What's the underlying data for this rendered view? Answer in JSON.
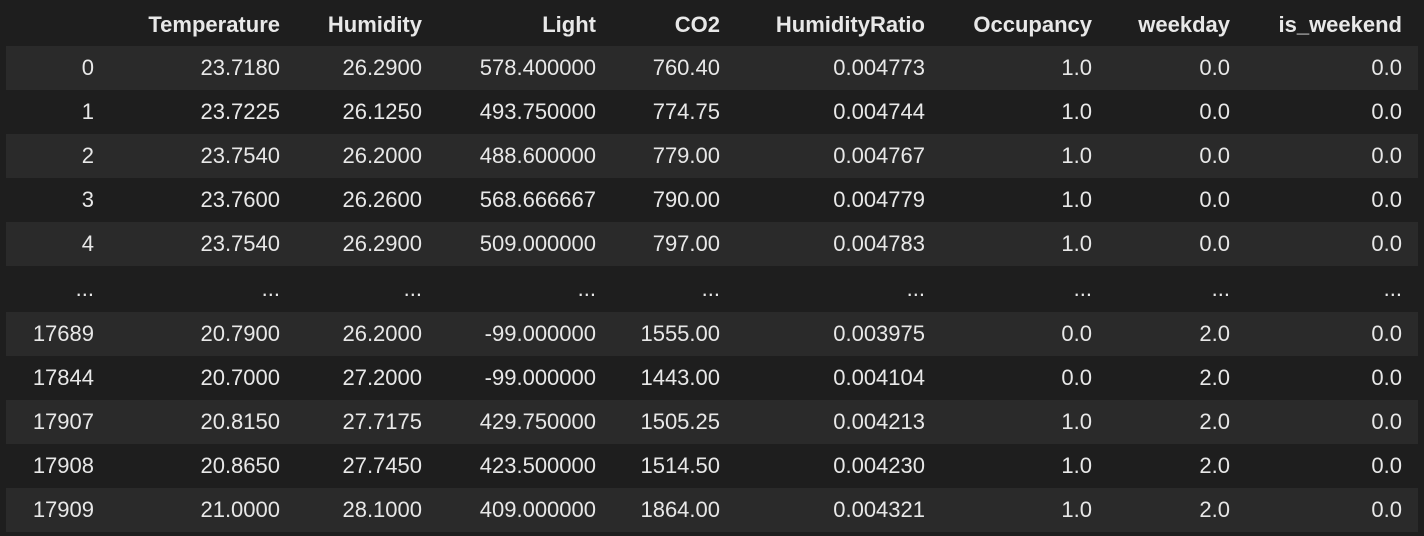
{
  "table": {
    "index_header": "",
    "columns": [
      "Temperature",
      "Humidity",
      "Light",
      "CO2",
      "HumidityRatio",
      "Occupancy",
      "weekday",
      "is_weekend"
    ],
    "rows": [
      {
        "index": "0",
        "cells": [
          "23.7180",
          "26.2900",
          "578.400000",
          "760.40",
          "0.004773",
          "1.0",
          "0.0",
          "0.0"
        ]
      },
      {
        "index": "1",
        "cells": [
          "23.7225",
          "26.1250",
          "493.750000",
          "774.75",
          "0.004744",
          "1.0",
          "0.0",
          "0.0"
        ]
      },
      {
        "index": "2",
        "cells": [
          "23.7540",
          "26.2000",
          "488.600000",
          "779.00",
          "0.004767",
          "1.0",
          "0.0",
          "0.0"
        ]
      },
      {
        "index": "3",
        "cells": [
          "23.7600",
          "26.2600",
          "568.666667",
          "790.00",
          "0.004779",
          "1.0",
          "0.0",
          "0.0"
        ]
      },
      {
        "index": "4",
        "cells": [
          "23.7540",
          "26.2900",
          "509.000000",
          "797.00",
          "0.004783",
          "1.0",
          "0.0",
          "0.0"
        ]
      },
      {
        "index": "...",
        "cells": [
          "...",
          "...",
          "...",
          "...",
          "...",
          "...",
          "...",
          "..."
        ]
      },
      {
        "index": "17689",
        "cells": [
          "20.7900",
          "26.2000",
          "-99.000000",
          "1555.00",
          "0.003975",
          "0.0",
          "2.0",
          "0.0"
        ]
      },
      {
        "index": "17844",
        "cells": [
          "20.7000",
          "27.2000",
          "-99.000000",
          "1443.00",
          "0.004104",
          "0.0",
          "2.0",
          "0.0"
        ]
      },
      {
        "index": "17907",
        "cells": [
          "20.8150",
          "27.7175",
          "429.750000",
          "1505.25",
          "0.004213",
          "1.0",
          "2.0",
          "0.0"
        ]
      },
      {
        "index": "17908",
        "cells": [
          "20.8650",
          "27.7450",
          "423.500000",
          "1514.50",
          "0.004230",
          "1.0",
          "2.0",
          "0.0"
        ]
      },
      {
        "index": "17909",
        "cells": [
          "21.0000",
          "28.1000",
          "409.000000",
          "1864.00",
          "0.004321",
          "1.0",
          "2.0",
          "0.0"
        ]
      }
    ]
  }
}
